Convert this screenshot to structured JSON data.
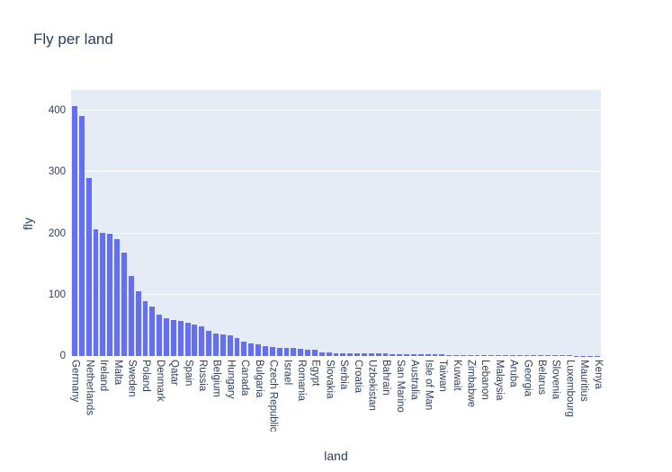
{
  "chart_data": {
    "type": "bar",
    "title": "Fly per land",
    "xlabel": "land",
    "ylabel": "fly",
    "yticks": [
      0,
      100,
      200,
      300,
      400
    ],
    "ylim": [
      0,
      434
    ],
    "grid": true,
    "legend": false,
    "x_tick_label_every": 2,
    "x_tick_angle_deg": 90,
    "labeled_categories": [
      "Germany",
      "Netherlands",
      "Ireland",
      "Malta",
      "Sweden",
      "Poland",
      "Denmark",
      "Qatar",
      "Spain",
      "Russia",
      "Belgium",
      "Hungary",
      "Canada",
      "Bulgaria",
      "Czech Republic",
      "Israel",
      "Romania",
      "Egypt",
      "Slovakia",
      "Serbia",
      "Croatia",
      "Uzbekistan",
      "Bahrain",
      "San Marino",
      "Australia",
      "Isle of Man",
      "Taiwan",
      "Kuwait",
      "Zimbabwe",
      "Lebanon",
      "Malaysia",
      "Aruba",
      "Georgia",
      "Belarus",
      "Slovenia",
      "Luxembourg",
      "Mauritius",
      "Kenya"
    ],
    "values": [
      408,
      391,
      290,
      207,
      201,
      199,
      190,
      168,
      130,
      106,
      90,
      81,
      68,
      61,
      59,
      57,
      54,
      51,
      48,
      41,
      36,
      35,
      34,
      29,
      23,
      21,
      19,
      16,
      14,
      13.5,
      13,
      12.5,
      12,
      11,
      10,
      6,
      5.5,
      5,
      5,
      5,
      4.5,
      4.5,
      4,
      4,
      4,
      3.5,
      3.5,
      3,
      3,
      3,
      2.5,
      2.5,
      2.5,
      2,
      2,
      2,
      2,
      1.5,
      1.5,
      1.5,
      1.5,
      1.5,
      1,
      1,
      1,
      1,
      1,
      1,
      0.8,
      0.8,
      0.8,
      0.7,
      0.7,
      0.6,
      0.6
    ],
    "colors": {
      "bar_color": "#636efa",
      "plot_bgcolor": "#e5ecf6",
      "paper_bgcolor": "#ffffff",
      "gridcolor": "#ffffff",
      "font_color": "#2a3f5f"
    }
  }
}
